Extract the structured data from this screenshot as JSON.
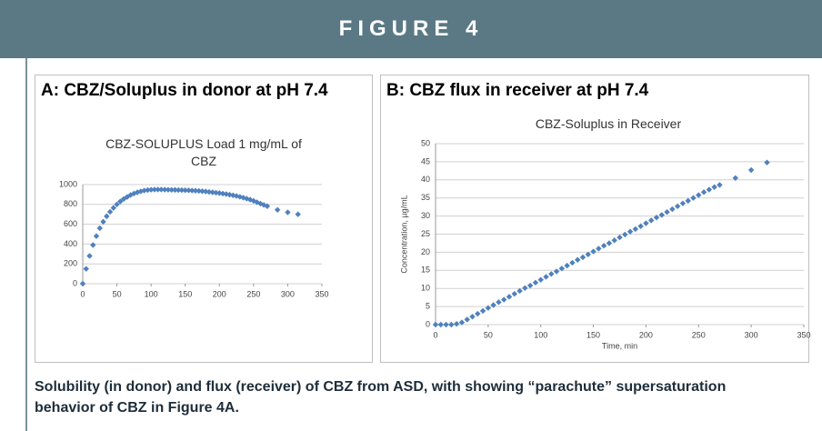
{
  "figure_label": "FIGURE 4",
  "caption": "Solubility (in donor) and flux (receiver) of CBZ from ASD, with showing “parachute” supersaturation behavior of CBZ in Figure 4A.",
  "chart_data": [
    {
      "type": "scatter",
      "title": "A: CBZ/Soluplus in donor at pH 7.4",
      "subtitle": "CBZ-SOLUPLUS Load 1 mg/mL of CBZ",
      "color": "#4f81bd",
      "x": [
        0,
        5,
        10,
        15,
        20,
        25,
        30,
        35,
        40,
        45,
        50,
        55,
        60,
        65,
        70,
        75,
        80,
        85,
        90,
        95,
        100,
        105,
        110,
        115,
        120,
        125,
        130,
        135,
        140,
        145,
        150,
        155,
        160,
        165,
        170,
        175,
        180,
        185,
        190,
        195,
        200,
        205,
        210,
        215,
        220,
        225,
        230,
        235,
        240,
        245,
        250,
        255,
        260,
        265,
        270,
        285,
        300,
        315
      ],
      "values": [
        0,
        150,
        280,
        390,
        480,
        560,
        625,
        680,
        725,
        765,
        800,
        830,
        855,
        875,
        895,
        910,
        922,
        932,
        940,
        945,
        948,
        950,
        950,
        950,
        949,
        948,
        947,
        946,
        945,
        944,
        943,
        942,
        940,
        938,
        936,
        933,
        930,
        926,
        922,
        918,
        914,
        909,
        904,
        898,
        892,
        885,
        877,
        868,
        858,
        848,
        836,
        822,
        808,
        795,
        782,
        745,
        720,
        700
      ],
      "xlim": [
        0,
        350
      ],
      "xticks": [
        0,
        50,
        100,
        150,
        200,
        250,
        300,
        350
      ],
      "ylim": [
        0,
        1000
      ],
      "yticks": [
        0,
        200,
        400,
        600,
        800,
        1000
      ],
      "grid": true
    },
    {
      "type": "scatter",
      "title": "B: CBZ flux in receiver at pH 7.4",
      "subtitle": "CBZ-Soluplus in Receiver",
      "x_label": "Time, min",
      "y_label": "Concentration, µg/mL",
      "color": "#4f81bd",
      "x": [
        0,
        5,
        10,
        15,
        20,
        25,
        30,
        35,
        40,
        45,
        50,
        55,
        60,
        65,
        70,
        75,
        80,
        85,
        90,
        95,
        100,
        105,
        110,
        115,
        120,
        125,
        130,
        135,
        140,
        145,
        150,
        155,
        160,
        165,
        170,
        175,
        180,
        185,
        190,
        195,
        200,
        205,
        210,
        215,
        220,
        225,
        230,
        235,
        240,
        245,
        250,
        255,
        260,
        265,
        270,
        285,
        300,
        315
      ],
      "values": [
        0,
        0,
        0,
        0,
        0.2,
        0.6,
        1.4,
        2.2,
        3.0,
        3.8,
        4.6,
        5.4,
        6.2,
        6.9,
        7.7,
        8.5,
        9.3,
        10.1,
        10.8,
        11.6,
        12.4,
        13.2,
        14.0,
        14.7,
        15.5,
        16.3,
        17.1,
        17.9,
        18.6,
        19.4,
        20.2,
        21.0,
        21.8,
        22.5,
        23.3,
        24.1,
        24.9,
        25.7,
        26.4,
        27.2,
        28.0,
        28.8,
        29.6,
        30.3,
        31.1,
        31.9,
        32.7,
        33.5,
        34.2,
        35.0,
        35.8,
        36.6,
        37.3,
        38.0,
        38.6,
        40.5,
        42.7,
        44.8
      ],
      "xlim": [
        0,
        350
      ],
      "xticks": [
        0,
        50,
        100,
        150,
        200,
        250,
        300,
        350
      ],
      "ylim": [
        0,
        50
      ],
      "yticks": [
        0,
        5,
        10,
        15,
        20,
        25,
        30,
        35,
        40,
        45,
        50
      ],
      "grid": true
    }
  ]
}
